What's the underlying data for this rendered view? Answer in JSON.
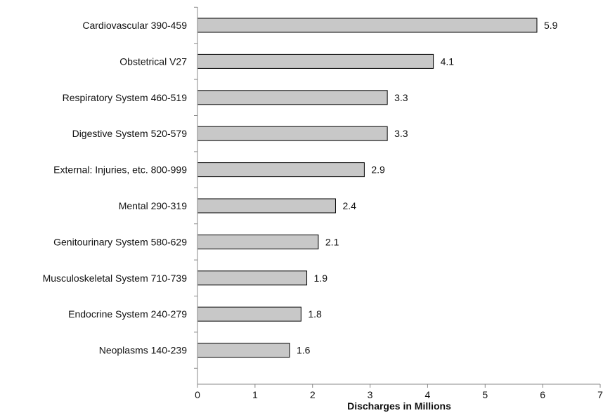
{
  "chart_data": {
    "type": "bar",
    "orientation": "horizontal",
    "categories": [
      "Cardiovascular 390-459",
      "Obstetrical V27",
      "Respiratory System 460-519",
      "Digestive System 520-579",
      "External: Injuries, etc. 800-999",
      "Mental 290-319",
      "Genitourinary System 580-629",
      "Musculoskeletal System 710-739",
      "Endocrine System 240-279",
      "Neoplasms 140-239"
    ],
    "values": [
      5.9,
      4.1,
      3.3,
      3.3,
      2.9,
      2.4,
      2.1,
      1.9,
      1.8,
      1.6
    ],
    "value_labels": [
      "5.9",
      "4.1",
      "3.3",
      "3.3",
      "2.9",
      "2.4",
      "2.1",
      "1.9",
      "1.8",
      "1.6"
    ],
    "title": "",
    "xlabel": "Discharges in Millions",
    "ylabel": "",
    "xlim": [
      0,
      7
    ],
    "xticks": [
      "0",
      "1",
      "2",
      "3",
      "4",
      "5",
      "6",
      "7"
    ],
    "grid": false,
    "colors": {
      "bar_fill": "#c8c8c8",
      "bar_stroke": "#000000",
      "axis": "#888888"
    }
  }
}
